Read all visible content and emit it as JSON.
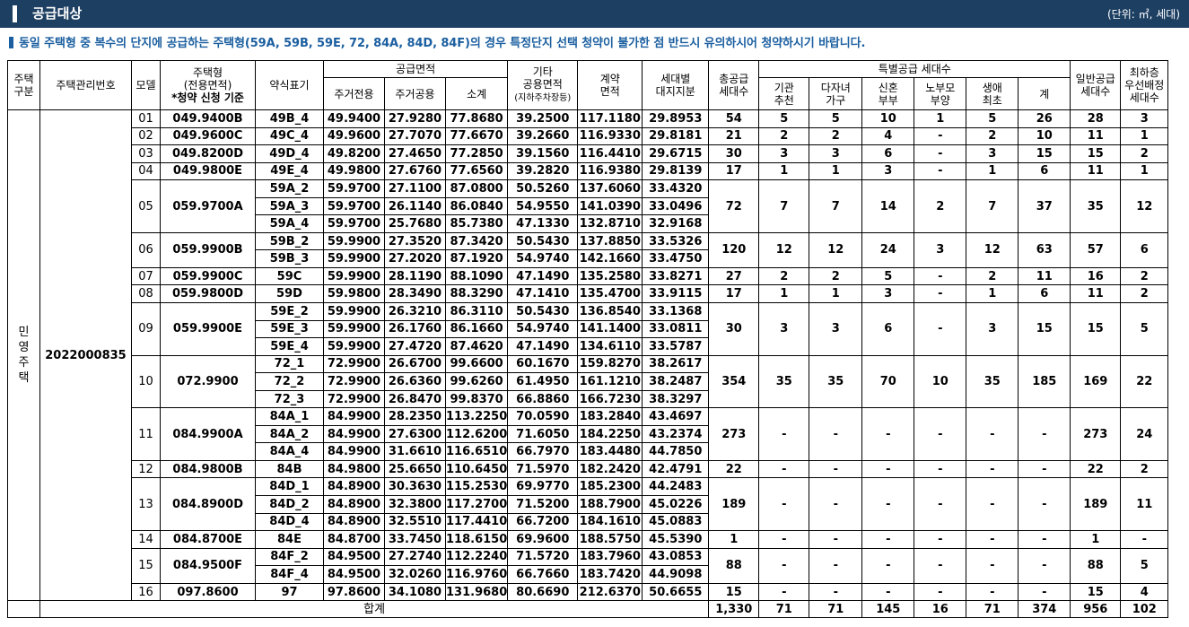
{
  "header": {
    "title": "공급대상",
    "unit": "(단위: ㎡, 세대)"
  },
  "notice": "동일 주택형 중 복수의 단지에 공급하는 주택형(59A, 59B, 59E, 72, 84A, 84D, 84F)의 경우 특정단지 선택 청약이 불가한 점 반드시 유의하시어 청약하시기 바랍니다.",
  "columns": {
    "house_kind": [
      "주택",
      "구분"
    ],
    "mgmt_no": "주택관리번호",
    "model": "모델",
    "housing_type": [
      "주택형",
      "(전용면적)",
      "*청약 신청 기준"
    ],
    "short_label": "약식표기",
    "supply_area": "공급면적",
    "exclusive": "주거전용",
    "common": "주거공용",
    "subtotal": "소계",
    "other": [
      "기타",
      "공용면적",
      "(지하주차장등)"
    ],
    "contract": [
      "계약",
      "면적"
    ],
    "land": [
      "세대별",
      "대지지분"
    ],
    "total_supply": [
      "총공급",
      "세대수"
    ],
    "special": "특별공급 세대수",
    "institution": [
      "기관",
      "추천"
    ],
    "multichild": [
      "다자녀",
      "가구"
    ],
    "newlywed": [
      "신혼",
      "부부"
    ],
    "elderly": [
      "노부모",
      "부양"
    ],
    "firsttime": [
      "생애",
      "최초"
    ],
    "sum": "계",
    "general": [
      "일반공급",
      "세대수"
    ],
    "lowest": [
      "최하층",
      "우선배정",
      "세대수"
    ]
  },
  "house_kind_value": [
    "민",
    "영",
    "주",
    "택"
  ],
  "mgmt_no_value": "2022000835",
  "groups": [
    {
      "model": "01",
      "type": "049.9400B",
      "rows": [
        [
          "49B_4",
          "49.9400",
          "27.9280",
          "77.8680",
          "39.2500",
          "117.1180",
          "29.8953"
        ]
      ],
      "total": "54",
      "inst": "5",
      "multi": "5",
      "newly": "10",
      "elder": "1",
      "first": "5",
      "sum": "26",
      "general": "28",
      "lowest": "3"
    },
    {
      "model": "02",
      "type": "049.9600C",
      "rows": [
        [
          "49C_4",
          "49.9600",
          "27.7070",
          "77.6670",
          "39.2660",
          "116.9330",
          "29.8181"
        ]
      ],
      "total": "21",
      "inst": "2",
      "multi": "2",
      "newly": "4",
      "elder": "-",
      "first": "2",
      "sum": "10",
      "general": "11",
      "lowest": "1"
    },
    {
      "model": "03",
      "type": "049.8200D",
      "rows": [
        [
          "49D_4",
          "49.8200",
          "27.4650",
          "77.2850",
          "39.1560",
          "116.4410",
          "29.6715"
        ]
      ],
      "total": "30",
      "inst": "3",
      "multi": "3",
      "newly": "6",
      "elder": "-",
      "first": "3",
      "sum": "15",
      "general": "15",
      "lowest": "2"
    },
    {
      "model": "04",
      "type": "049.9800E",
      "rows": [
        [
          "49E_4",
          "49.9800",
          "27.6760",
          "77.6560",
          "39.2820",
          "116.9380",
          "29.8139"
        ]
      ],
      "total": "17",
      "inst": "1",
      "multi": "1",
      "newly": "3",
      "elder": "-",
      "first": "1",
      "sum": "6",
      "general": "11",
      "lowest": "1"
    },
    {
      "model": "05",
      "type": "059.9700A",
      "rows": [
        [
          "59A_2",
          "59.9700",
          "27.1100",
          "87.0800",
          "50.5260",
          "137.6060",
          "33.4320"
        ],
        [
          "59A_3",
          "59.9700",
          "26.1140",
          "86.0840",
          "54.9550",
          "141.0390",
          "33.0496"
        ],
        [
          "59A_4",
          "59.9700",
          "25.7680",
          "85.7380",
          "47.1330",
          "132.8710",
          "32.9168"
        ]
      ],
      "total": "72",
      "inst": "7",
      "multi": "7",
      "newly": "14",
      "elder": "2",
      "first": "7",
      "sum": "37",
      "general": "35",
      "lowest": "12"
    },
    {
      "model": "06",
      "type": "059.9900B",
      "rows": [
        [
          "59B_2",
          "59.9900",
          "27.3520",
          "87.3420",
          "50.5430",
          "137.8850",
          "33.5326"
        ],
        [
          "59B_3",
          "59.9900",
          "27.2020",
          "87.1920",
          "54.9740",
          "142.1660",
          "33.4750"
        ]
      ],
      "total": "120",
      "inst": "12",
      "multi": "12",
      "newly": "24",
      "elder": "3",
      "first": "12",
      "sum": "63",
      "general": "57",
      "lowest": "6"
    },
    {
      "model": "07",
      "type": "059.9900C",
      "rows": [
        [
          "59C",
          "59.9900",
          "28.1190",
          "88.1090",
          "47.1490",
          "135.2580",
          "33.8271"
        ]
      ],
      "total": "27",
      "inst": "2",
      "multi": "2",
      "newly": "5",
      "elder": "-",
      "first": "2",
      "sum": "11",
      "general": "16",
      "lowest": "2"
    },
    {
      "model": "08",
      "type": "059.9800D",
      "rows": [
        [
          "59D",
          "59.9800",
          "28.3490",
          "88.3290",
          "47.1410",
          "135.4700",
          "33.9115"
        ]
      ],
      "total": "17",
      "inst": "1",
      "multi": "1",
      "newly": "3",
      "elder": "-",
      "first": "1",
      "sum": "6",
      "general": "11",
      "lowest": "2"
    },
    {
      "model": "09",
      "type": "059.9900E",
      "rows": [
        [
          "59E_2",
          "59.9900",
          "26.3210",
          "86.3110",
          "50.5430",
          "136.8540",
          "33.1368"
        ],
        [
          "59E_3",
          "59.9900",
          "26.1760",
          "86.1660",
          "54.9740",
          "141.1400",
          "33.0811"
        ],
        [
          "59E_4",
          "59.9900",
          "27.4720",
          "87.4620",
          "47.1490",
          "134.6110",
          "33.5787"
        ]
      ],
      "total": "30",
      "inst": "3",
      "multi": "3",
      "newly": "6",
      "elder": "-",
      "first": "3",
      "sum": "15",
      "general": "15",
      "lowest": "5"
    },
    {
      "model": "10",
      "type": "072.9900",
      "rows": [
        [
          "72_1",
          "72.9900",
          "26.6700",
          "99.6600",
          "60.1670",
          "159.8270",
          "38.2617"
        ],
        [
          "72_2",
          "72.9900",
          "26.6360",
          "99.6260",
          "61.4950",
          "161.1210",
          "38.2487"
        ],
        [
          "72_3",
          "72.9900",
          "26.8470",
          "99.8370",
          "66.8860",
          "166.7230",
          "38.3297"
        ]
      ],
      "total": "354",
      "inst": "35",
      "multi": "35",
      "newly": "70",
      "elder": "10",
      "first": "35",
      "sum": "185",
      "general": "169",
      "lowest": "22"
    },
    {
      "model": "11",
      "type": "084.9900A",
      "rows": [
        [
          "84A_1",
          "84.9900",
          "28.2350",
          "113.2250",
          "70.0590",
          "183.2840",
          "43.4697"
        ],
        [
          "84A_2",
          "84.9900",
          "27.6300",
          "112.6200",
          "71.6050",
          "184.2250",
          "43.2374"
        ],
        [
          "84A_4",
          "84.9900",
          "31.6610",
          "116.6510",
          "66.7970",
          "183.4480",
          "44.7850"
        ]
      ],
      "total": "273",
      "inst": "-",
      "multi": "-",
      "newly": "-",
      "elder": "-",
      "first": "-",
      "sum": "-",
      "general": "273",
      "lowest": "24"
    },
    {
      "model": "12",
      "type": "084.9800B",
      "rows": [
        [
          "84B",
          "84.9800",
          "25.6650",
          "110.6450",
          "71.5970",
          "182.2420",
          "42.4791"
        ]
      ],
      "total": "22",
      "inst": "-",
      "multi": "-",
      "newly": "-",
      "elder": "-",
      "first": "-",
      "sum": "-",
      "general": "22",
      "lowest": "2"
    },
    {
      "model": "13",
      "type": "084.8900D",
      "rows": [
        [
          "84D_1",
          "84.8900",
          "30.3630",
          "115.2530",
          "69.9770",
          "185.2300",
          "44.2483"
        ],
        [
          "84D_2",
          "84.8900",
          "32.3800",
          "117.2700",
          "71.5200",
          "188.7900",
          "45.0226"
        ],
        [
          "84D_4",
          "84.8900",
          "32.5510",
          "117.4410",
          "66.7200",
          "184.1610",
          "45.0883"
        ]
      ],
      "total": "189",
      "inst": "-",
      "multi": "-",
      "newly": "-",
      "elder": "-",
      "first": "-",
      "sum": "-",
      "general": "189",
      "lowest": "11"
    },
    {
      "model": "14",
      "type": "084.8700E",
      "rows": [
        [
          "84E",
          "84.8700",
          "33.7450",
          "118.6150",
          "69.9600",
          "188.5750",
          "45.5390"
        ]
      ],
      "total": "1",
      "inst": "-",
      "multi": "-",
      "newly": "-",
      "elder": "-",
      "first": "-",
      "sum": "-",
      "general": "1",
      "lowest": "-"
    },
    {
      "model": "15",
      "type": "084.9500F",
      "rows": [
        [
          "84F_2",
          "84.9500",
          "27.2740",
          "112.2240",
          "71.5720",
          "183.7960",
          "43.0853"
        ],
        [
          "84F_4",
          "84.9500",
          "32.0260",
          "116.9760",
          "66.7660",
          "183.7420",
          "44.9098"
        ]
      ],
      "total": "88",
      "inst": "-",
      "multi": "-",
      "newly": "-",
      "elder": "-",
      "first": "-",
      "sum": "-",
      "general": "88",
      "lowest": "5"
    },
    {
      "model": "16",
      "type": "097.8600",
      "rows": [
        [
          "97",
          "97.8600",
          "34.1080",
          "131.9680",
          "80.6690",
          "212.6370",
          "50.6655"
        ]
      ],
      "total": "15",
      "inst": "-",
      "multi": "-",
      "newly": "-",
      "elder": "-",
      "first": "-",
      "sum": "-",
      "general": "15",
      "lowest": "4"
    }
  ],
  "totals": {
    "label": "합계",
    "total": "1,330",
    "inst": "71",
    "multi": "71",
    "newly": "145",
    "elder": "16",
    "first": "71",
    "sum": "374",
    "general": "956",
    "lowest": "102"
  },
  "colors": {
    "header_bg": "#1d3f62",
    "notice": "#1b5fa0"
  }
}
